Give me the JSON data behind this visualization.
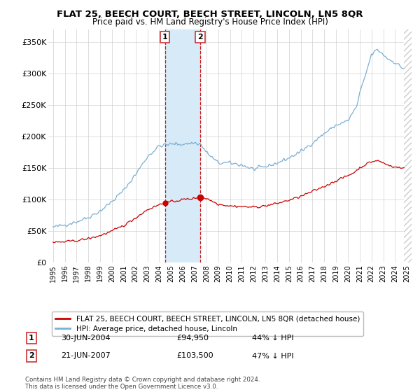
{
  "title": "FLAT 25, BEECH COURT, BEECH STREET, LINCOLN, LN5 8QR",
  "subtitle": "Price paid vs. HM Land Registry's House Price Index (HPI)",
  "legend_label_red": "FLAT 25, BEECH COURT, BEECH STREET, LINCOLN, LN5 8QR (detached house)",
  "legend_label_blue": "HPI: Average price, detached house, Lincoln",
  "transaction1_date": "30-JUN-2004",
  "transaction1_price": "£94,950",
  "transaction1_hpi": "44% ↓ HPI",
  "transaction1_x": 2004.5,
  "transaction1_y": 94950,
  "transaction2_date": "21-JUN-2007",
  "transaction2_price": "£103,500",
  "transaction2_hpi": "47% ↓ HPI",
  "transaction2_x": 2007.47,
  "transaction2_y": 103500,
  "footnote": "Contains HM Land Registry data © Crown copyright and database right 2024.\nThis data is licensed under the Open Government Licence v3.0.",
  "ylim": [
    0,
    370000
  ],
  "xlim_start": 1994.6,
  "xlim_end": 2025.4,
  "background_color": "#ffffff",
  "shaded_region_color": "#d6eaf8",
  "red_color": "#cc0000",
  "blue_color": "#7aafd4",
  "vline_color": "#cc0000",
  "yticks": [
    0,
    50000,
    100000,
    150000,
    200000,
    250000,
    300000,
    350000
  ],
  "ytick_labels": [
    "£0",
    "£50K",
    "£100K",
    "£150K",
    "£200K",
    "£250K",
    "£300K",
    "£350K"
  ],
  "hatch_start": 2024.75
}
